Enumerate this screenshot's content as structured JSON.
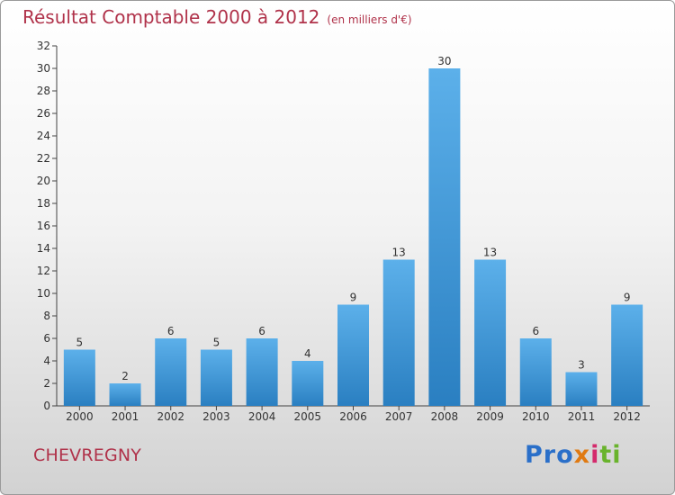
{
  "title": "Résultat Comptable 2000 à 2012",
  "subtitle": "(en milliers d'€)",
  "commune": "CHEVREGNY",
  "logo": {
    "p1": "Pro",
    "p2": "x",
    "p3": "i",
    "p4": "ti"
  },
  "colors": {
    "bar_light": "#5cb0ea",
    "bar_dark": "#2a7fc1",
    "title": "#b0324a"
  },
  "chart_data": {
    "type": "bar",
    "title": "Résultat Comptable 2000 à 2012",
    "subtitle": "(en milliers d'€)",
    "xlabel": "",
    "ylabel": "",
    "categories": [
      "2000",
      "2001",
      "2002",
      "2003",
      "2004",
      "2005",
      "2006",
      "2007",
      "2008",
      "2009",
      "2010",
      "2011",
      "2012"
    ],
    "values": [
      5,
      2,
      6,
      5,
      6,
      4,
      9,
      13,
      30,
      13,
      6,
      3,
      9
    ],
    "ylim": [
      0,
      32
    ],
    "yticks": [
      0,
      2,
      4,
      6,
      8,
      10,
      12,
      14,
      16,
      18,
      20,
      22,
      24,
      26,
      28,
      30,
      32
    ],
    "grid": false
  }
}
